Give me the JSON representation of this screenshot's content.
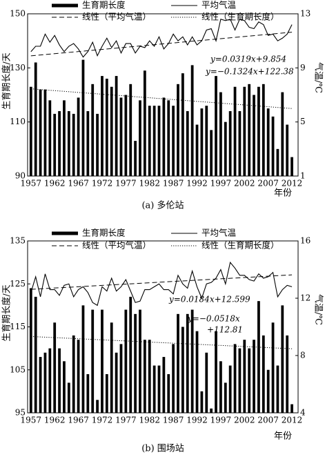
{
  "chart_data": [
    {
      "type": "bar",
      "caption": "(a) 多伦站",
      "y_label": "生育期长度/天",
      "y2_label": "气温/℃",
      "x_label": "年份",
      "x": [
        1957,
        1958,
        1959,
        1960,
        1961,
        1962,
        1963,
        1964,
        1965,
        1966,
        1967,
        1968,
        1969,
        1970,
        1971,
        1972,
        1973,
        1974,
        1975,
        1976,
        1977,
        1978,
        1979,
        1980,
        1981,
        1982,
        1983,
        1984,
        1985,
        1986,
        1987,
        1988,
        1989,
        1990,
        1991,
        1992,
        1993,
        1994,
        1995,
        1996,
        1997,
        1998,
        1999,
        2000,
        2001,
        2002,
        2003,
        2004,
        2005,
        2006,
        2007,
        2008,
        2009,
        2010,
        2011,
        2012
      ],
      "xlim": [
        1956.3,
        2013.3
      ],
      "xticks": [
        1957,
        1962,
        1967,
        1972,
        1977,
        1982,
        1987,
        1992,
        1997,
        2002,
        2007,
        2012
      ],
      "ylim": [
        90,
        150
      ],
      "yticks": [
        90,
        110,
        130,
        150
      ],
      "y2lim": [
        1,
        13
      ],
      "y2ticks": [
        1,
        5,
        9,
        13
      ],
      "series": [
        {
          "name": "生育期长度",
          "type": "bar",
          "color": "#000000",
          "values": [
            123,
            132,
            122,
            122,
            118,
            113,
            114,
            118,
            114,
            113,
            119,
            133,
            114,
            124,
            113,
            127,
            126,
            123,
            127,
            119,
            120,
            124,
            103,
            118,
            129,
            116,
            116,
            116,
            119,
            118,
            116,
            124,
            128,
            114,
            131,
            109,
            115,
            116,
            107,
            127,
            121,
            110,
            114,
            123,
            114,
            123,
            124,
            120,
            123,
            124,
            115,
            112,
            100,
            121,
            109,
            97
          ]
        },
        {
          "name": "平均气温",
          "type": "line",
          "axis": "y2",
          "color": "#000000",
          "values": [
            10.2,
            10.6,
            10.6,
            11.5,
            10.9,
            11.4,
            10.7,
            10.2,
            10.6,
            10.8,
            10.4,
            9.8,
            10.2,
            10.9,
            9.9,
            10.6,
            11.2,
            10.5,
            11.0,
            10.1,
            10.8,
            10.8,
            10.1,
            10.6,
            10.5,
            11.0,
            10.6,
            11.3,
            10.4,
            10.8,
            11.5,
            11.0,
            11.3,
            10.7,
            11.3,
            10.7,
            11.0,
            11.8,
            11.9,
            11.0,
            12.6,
            12.5,
            12.6,
            11.8,
            12.6,
            12.5,
            12.0,
            11.9,
            12.4,
            12.2,
            11.4,
            11.5,
            11.0,
            11.2,
            11.5,
            12.2
          ]
        },
        {
          "name": "线性（平均气温）",
          "type": "line",
          "dash": "dashed",
          "axis": "y2",
          "color": "#000000",
          "x": [
            1957,
            2012
          ],
          "values": [
            9.89,
            11.64
          ]
        },
        {
          "name": "线性（生育期长度）",
          "type": "line",
          "dash": "dotted",
          "color": "#000000",
          "x": [
            1957,
            2012
          ],
          "values": [
            122.25,
            114.97
          ]
        }
      ],
      "annotations": [
        "y=0.0319x+9.854",
        "y=−0.1324x+122.38"
      ]
    },
    {
      "type": "bar",
      "caption": "(b) 围场站",
      "y_label": "生育期长度/天",
      "y2_label": "气温/℃",
      "x_label": "年份",
      "x": [
        1957,
        1958,
        1959,
        1960,
        1961,
        1962,
        1963,
        1964,
        1965,
        1966,
        1967,
        1968,
        1969,
        1970,
        1971,
        1972,
        1973,
        1974,
        1975,
        1976,
        1977,
        1978,
        1979,
        1980,
        1981,
        1982,
        1983,
        1984,
        1985,
        1986,
        1987,
        1988,
        1989,
        1990,
        1991,
        1992,
        1993,
        1994,
        1995,
        1996,
        1997,
        1998,
        1999,
        2000,
        2001,
        2002,
        2003,
        2004,
        2005,
        2006,
        2007,
        2008,
        2009,
        2010,
        2011,
        2012
      ],
      "xlim": [
        1956.3,
        2013.3
      ],
      "xticks": [
        1957,
        1962,
        1967,
        1972,
        1977,
        1982,
        1987,
        1992,
        1997,
        2002,
        2007,
        2012
      ],
      "ylim": [
        95,
        135
      ],
      "yticks": [
        95,
        105,
        115,
        125,
        135
      ],
      "y2lim": [
        4,
        16
      ],
      "y2ticks": [
        4,
        8,
        12,
        16
      ],
      "series": [
        {
          "name": "生育期长度",
          "type": "bar",
          "color": "#000000",
          "values": [
            124,
            122,
            108,
            109,
            110,
            116,
            110,
            107,
            102,
            113,
            112,
            120,
            104,
            119,
            98,
            119,
            104,
            116,
            109,
            111,
            119,
            122,
            118,
            119,
            112,
            112,
            106,
            106,
            108,
            104,
            111,
            118,
            115,
            118,
            119,
            114,
            100,
            109,
            96,
            114,
            107,
            102,
            106,
            111,
            110,
            112,
            110,
            112,
            121,
            113,
            105,
            116,
            106,
            120,
            113,
            97
          ]
        },
        {
          "name": "平均气温",
          "type": "line",
          "axis": "y2",
          "color": "#000000",
          "values": [
            12.4,
            13.5,
            12.1,
            13.7,
            12.6,
            12.6,
            12.2,
            12.9,
            13.0,
            12.1,
            12.6,
            12.8,
            12.4,
            11.7,
            11.5,
            12.8,
            12.5,
            13.4,
            12.5,
            12.8,
            13.3,
            12.5,
            11.7,
            11.8,
            12.6,
            12.6,
            12.8,
            13.0,
            12.6,
            12.6,
            12.3,
            13.6,
            13.0,
            12.7,
            13.9,
            12.8,
            12.0,
            13.0,
            13.1,
            13.4,
            14.0,
            13.0,
            14.5,
            14.1,
            13.6,
            13.6,
            13.3,
            13.2,
            13.7,
            13.4,
            13.5,
            13.8,
            12.1,
            12.6,
            12.9,
            12.8
          ]
        },
        {
          "name": "线性（平均气温）",
          "type": "line",
          "dash": "dashed",
          "axis": "y2",
          "color": "#000000",
          "x": [
            1957,
            2012
          ],
          "values": [
            12.62,
            13.63
          ]
        },
        {
          "name": "线性（生育期长度）",
          "type": "line",
          "dash": "dotted",
          "color": "#000000",
          "x": [
            1957,
            2012
          ],
          "values": [
            112.76,
            109.91
          ]
        }
      ],
      "annotations": [
        "y=0.0184x+12.599",
        "y=−0.0518x",
        "+112.81"
      ]
    }
  ]
}
